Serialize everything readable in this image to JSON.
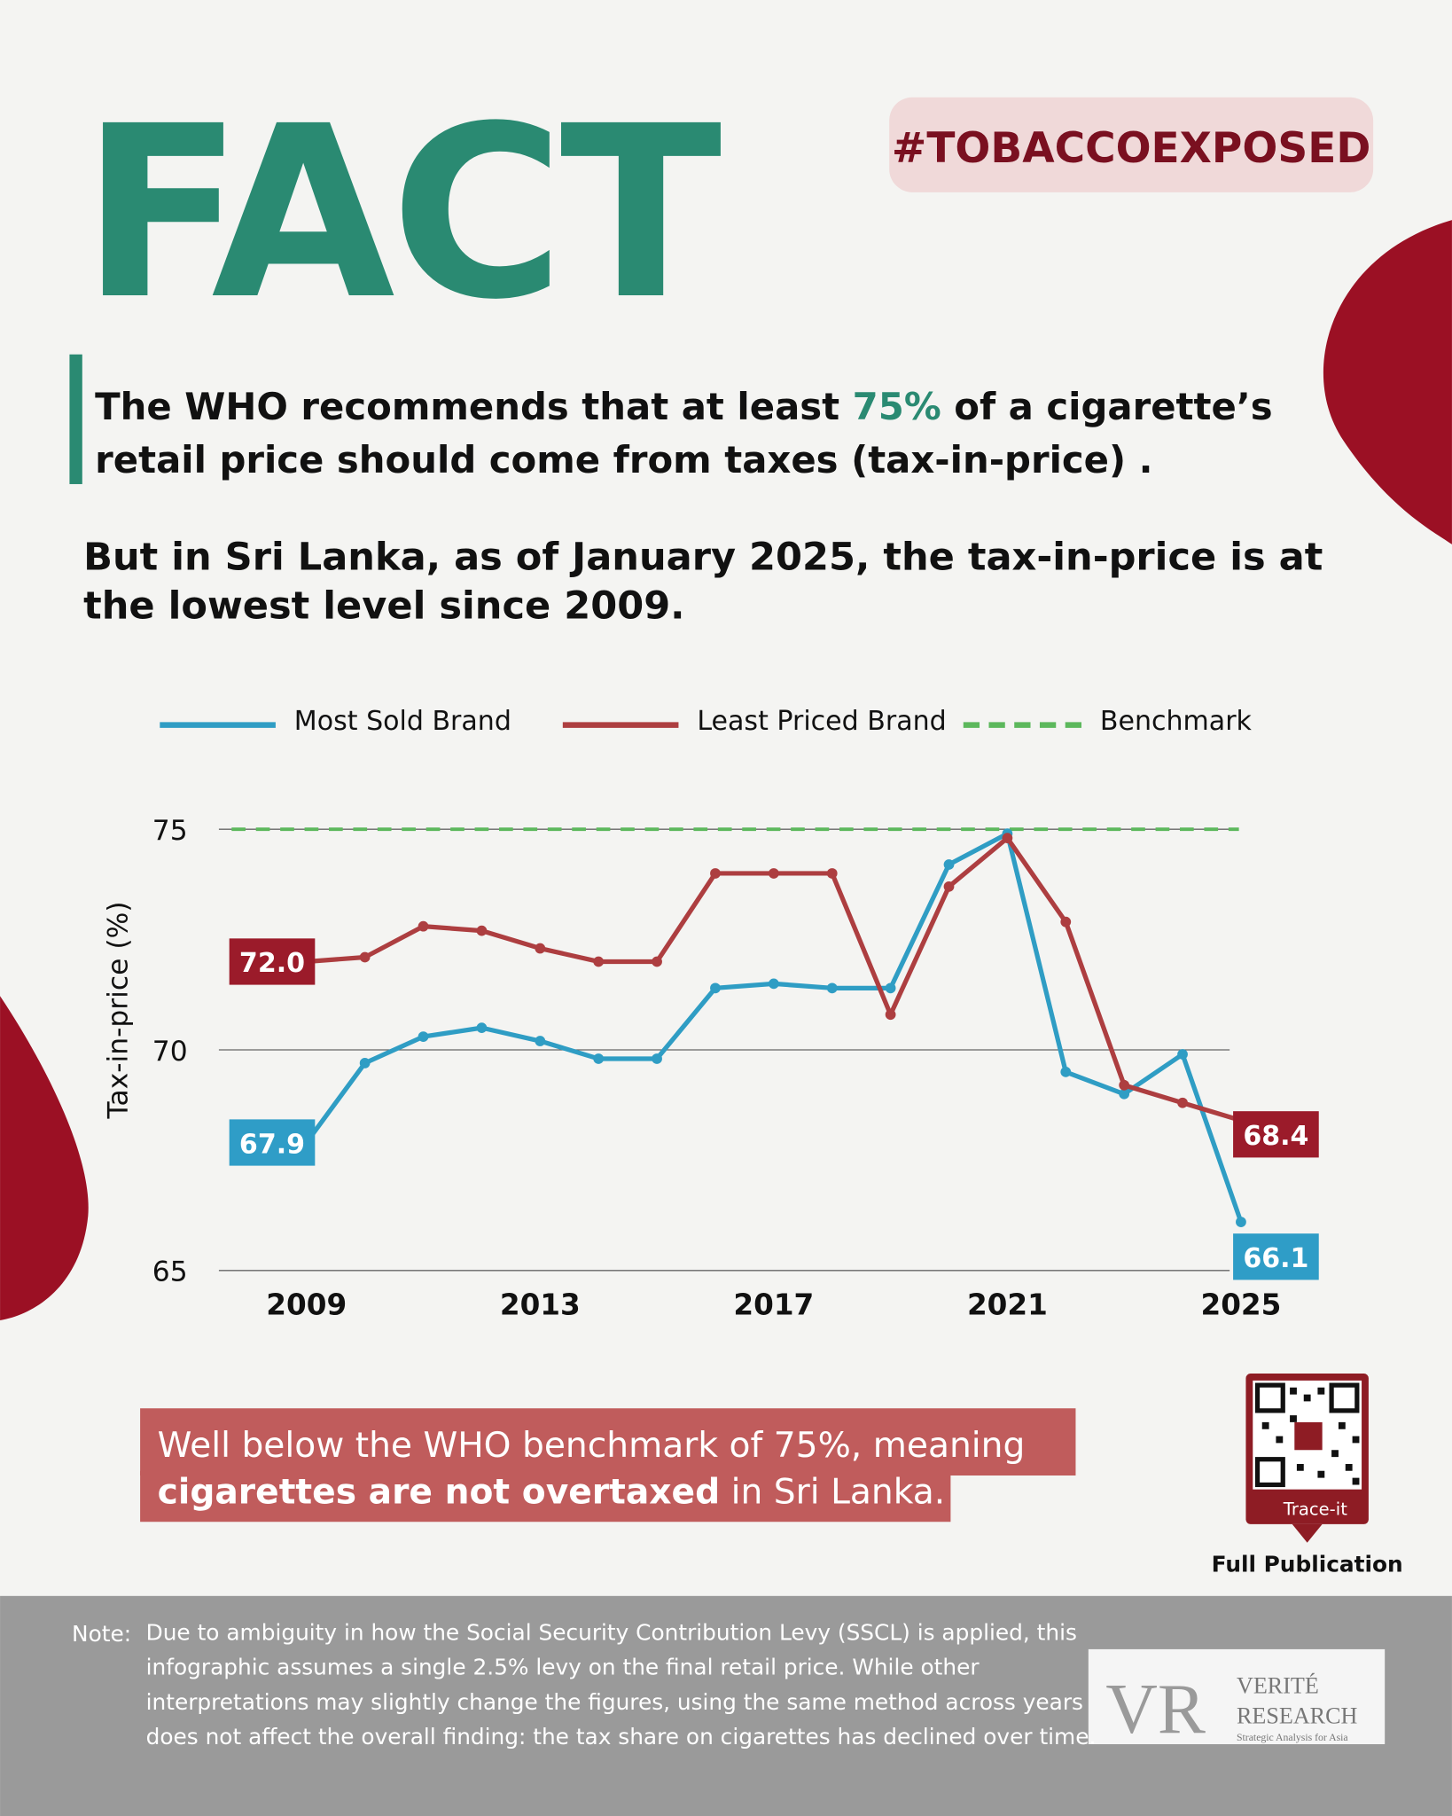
{
  "header": {
    "title": "FACT",
    "hashtag": "#TOBACCOEXPOSED"
  },
  "intro": {
    "line1": [
      "The WHO recommends that at least ",
      "75%",
      " of a cigarette’s"
    ],
    "line2": "retail price should come from taxes (tax-in-price) .",
    "line3": "But in Sri Lanka, as of January 2025, the tax-in-price is at",
    "line4": "the lowest level since 2009."
  },
  "chart_data": {
    "type": "line",
    "y_label": "Tax-in-price (%)",
    "x": [
      2009,
      2010,
      2011,
      2012,
      2013,
      2014,
      2015,
      2016,
      2017,
      2018,
      2019,
      2020,
      2021,
      2022,
      2023,
      2024,
      2025
    ],
    "series": [
      {
        "name": "Most Sold Brand",
        "color": "#2f9dc4",
        "values": [
          67.9,
          69.7,
          70.3,
          70.5,
          70.2,
          69.8,
          69.8,
          71.4,
          71.5,
          71.4,
          71.4,
          74.2,
          74.9,
          69.5,
          69.0,
          69.9,
          66.1
        ],
        "value_labels": [
          "67.9",
          null,
          null,
          null,
          null,
          null,
          null,
          null,
          null,
          null,
          null,
          null,
          null,
          null,
          null,
          null,
          "66.1"
        ]
      },
      {
        "name": "Least Priced Brand",
        "color": "#ad3e40",
        "values": [
          72.0,
          72.1,
          72.8,
          72.7,
          72.3,
          72.0,
          72.0,
          74.0,
          74.0,
          74.0,
          70.8,
          73.7,
          74.8,
          72.9,
          69.2,
          68.8,
          68.4
        ],
        "value_labels": [
          "72.0",
          null,
          null,
          null,
          null,
          null,
          null,
          null,
          null,
          null,
          null,
          null,
          null,
          null,
          null,
          null,
          "68.4"
        ]
      }
    ],
    "benchmark": {
      "name": "Benchmark",
      "value": 75,
      "color": "#5cb85c"
    },
    "xlim": [
      2007.5,
      2025.5
    ],
    "xticks": [
      2009,
      2013,
      2017,
      2021,
      2025
    ],
    "ylim": [
      65,
      75
    ],
    "yticks": [
      65,
      70,
      75
    ],
    "grid": true
  },
  "callout": {
    "line1": "Well below the WHO benchmark of 75%, meaning",
    "line2": [
      "cigarettes are not overtaxed",
      " in Sri Lanka."
    ]
  },
  "qr": {
    "button": "Trace-it",
    "caption": "Full Publication"
  },
  "note": {
    "label": "Note:",
    "lines": [
      "Due to ambiguity in how the Social Security Contribution Levy (SSCL) is applied, this",
      "infographic assumes a single 2.5% levy on the final retail price. While other",
      "interpretations may slightly change the figures, using the same method across years",
      "does not affect the overall finding: the tax share on cigarettes has declined over time."
    ]
  },
  "logo": {
    "mark": "VR",
    "name1": "VERITÉ",
    "name2": "RESEARCH",
    "tagline": "Strategic Analysis for Asia"
  }
}
